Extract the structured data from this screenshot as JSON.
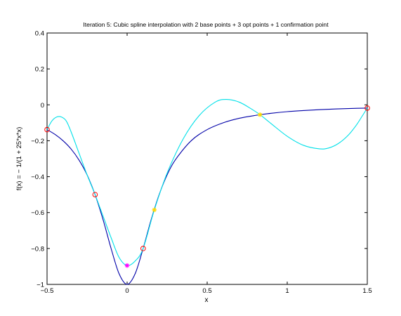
{
  "chart_data": {
    "type": "line",
    "title": "Iteration 5: Cubic spline interpolation with 2 base points + 3 opt points + 1 confirmation point",
    "xlabel": "x",
    "ylabel": "f(x) = − 1/(1 + 25*x*x)",
    "xlim": [
      -0.5,
      1.5
    ],
    "ylim": [
      -1,
      0.4
    ],
    "x_ticks": [
      -0.5,
      0,
      0.5,
      1,
      1.5
    ],
    "x_tick_labels": [
      "−0.5",
      "0",
      "0.5",
      "1",
      "1.5"
    ],
    "y_ticks": [
      0.4,
      0.2,
      0,
      -0.2,
      -0.4,
      -0.6,
      -0.8,
      -1
    ],
    "y_tick_labels": [
      "0.4",
      "0.2",
      "0",
      "−0.2",
      "−0.4",
      "−0.6",
      "−0.8",
      "−1"
    ],
    "grid": false,
    "series": [
      {
        "color": "#0000a8",
        "style": "line",
        "x": [
          -0.5,
          -0.45,
          -0.4,
          -0.35,
          -0.3,
          -0.25,
          -0.2,
          -0.15,
          -0.1,
          -0.05,
          0,
          0.05,
          0.1,
          0.15,
          0.2,
          0.25,
          0.3,
          0.4,
          0.5,
          0.6,
          0.7,
          0.8,
          0.9,
          1.0,
          1.1,
          1.2,
          1.3,
          1.4,
          1.5
        ],
        "y": [
          -0.138,
          -0.165,
          -0.2,
          -0.246,
          -0.308,
          -0.39,
          -0.5,
          -0.64,
          -0.8,
          -0.941,
          -1,
          -0.941,
          -0.8,
          -0.64,
          -0.5,
          -0.39,
          -0.308,
          -0.2,
          -0.138,
          -0.1,
          -0.075,
          -0.059,
          -0.047,
          -0.038,
          -0.032,
          -0.027,
          -0.023,
          -0.02,
          -0.018
        ]
      },
      {
        "color": "#00e0e8",
        "style": "line",
        "x": [
          -0.5,
          -0.47,
          -0.44,
          -0.41,
          -0.38,
          -0.35,
          -0.3,
          -0.25,
          -0.2,
          -0.15,
          -0.1,
          -0.05,
          0,
          0.05,
          0.1,
          0.17,
          0.25,
          0.35,
          0.45,
          0.55,
          0.62,
          0.7,
          0.78,
          0.83,
          0.9,
          1.0,
          1.1,
          1.2,
          1.26,
          1.32,
          1.38,
          1.43,
          1.47,
          1.5
        ],
        "y": [
          -0.138,
          -0.09,
          -0.068,
          -0.068,
          -0.09,
          -0.15,
          -0.27,
          -0.39,
          -0.5,
          -0.62,
          -0.74,
          -0.85,
          -0.895,
          -0.87,
          -0.8,
          -0.585,
          -0.38,
          -0.19,
          -0.06,
          0.015,
          0.03,
          0.015,
          -0.025,
          -0.055,
          -0.105,
          -0.175,
          -0.225,
          -0.245,
          -0.24,
          -0.215,
          -0.17,
          -0.115,
          -0.06,
          -0.018
        ]
      },
      {
        "name": "base/opt points",
        "color": "#ff0000",
        "style": "markers-circle",
        "x": [
          -0.5,
          -0.2,
          0.1,
          1.5
        ],
        "y": [
          -0.138,
          -0.5,
          -0.8,
          -0.018
        ]
      },
      {
        "name": "opt points",
        "color": "#ffd800",
        "style": "markers-star",
        "x": [
          0.17,
          0.83
        ],
        "y": [
          -0.585,
          -0.055
        ]
      },
      {
        "name": "confirmation point",
        "color": "#ff00ff",
        "style": "markers-star",
        "x": [
          0
        ],
        "y": [
          -0.895
        ]
      }
    ]
  }
}
